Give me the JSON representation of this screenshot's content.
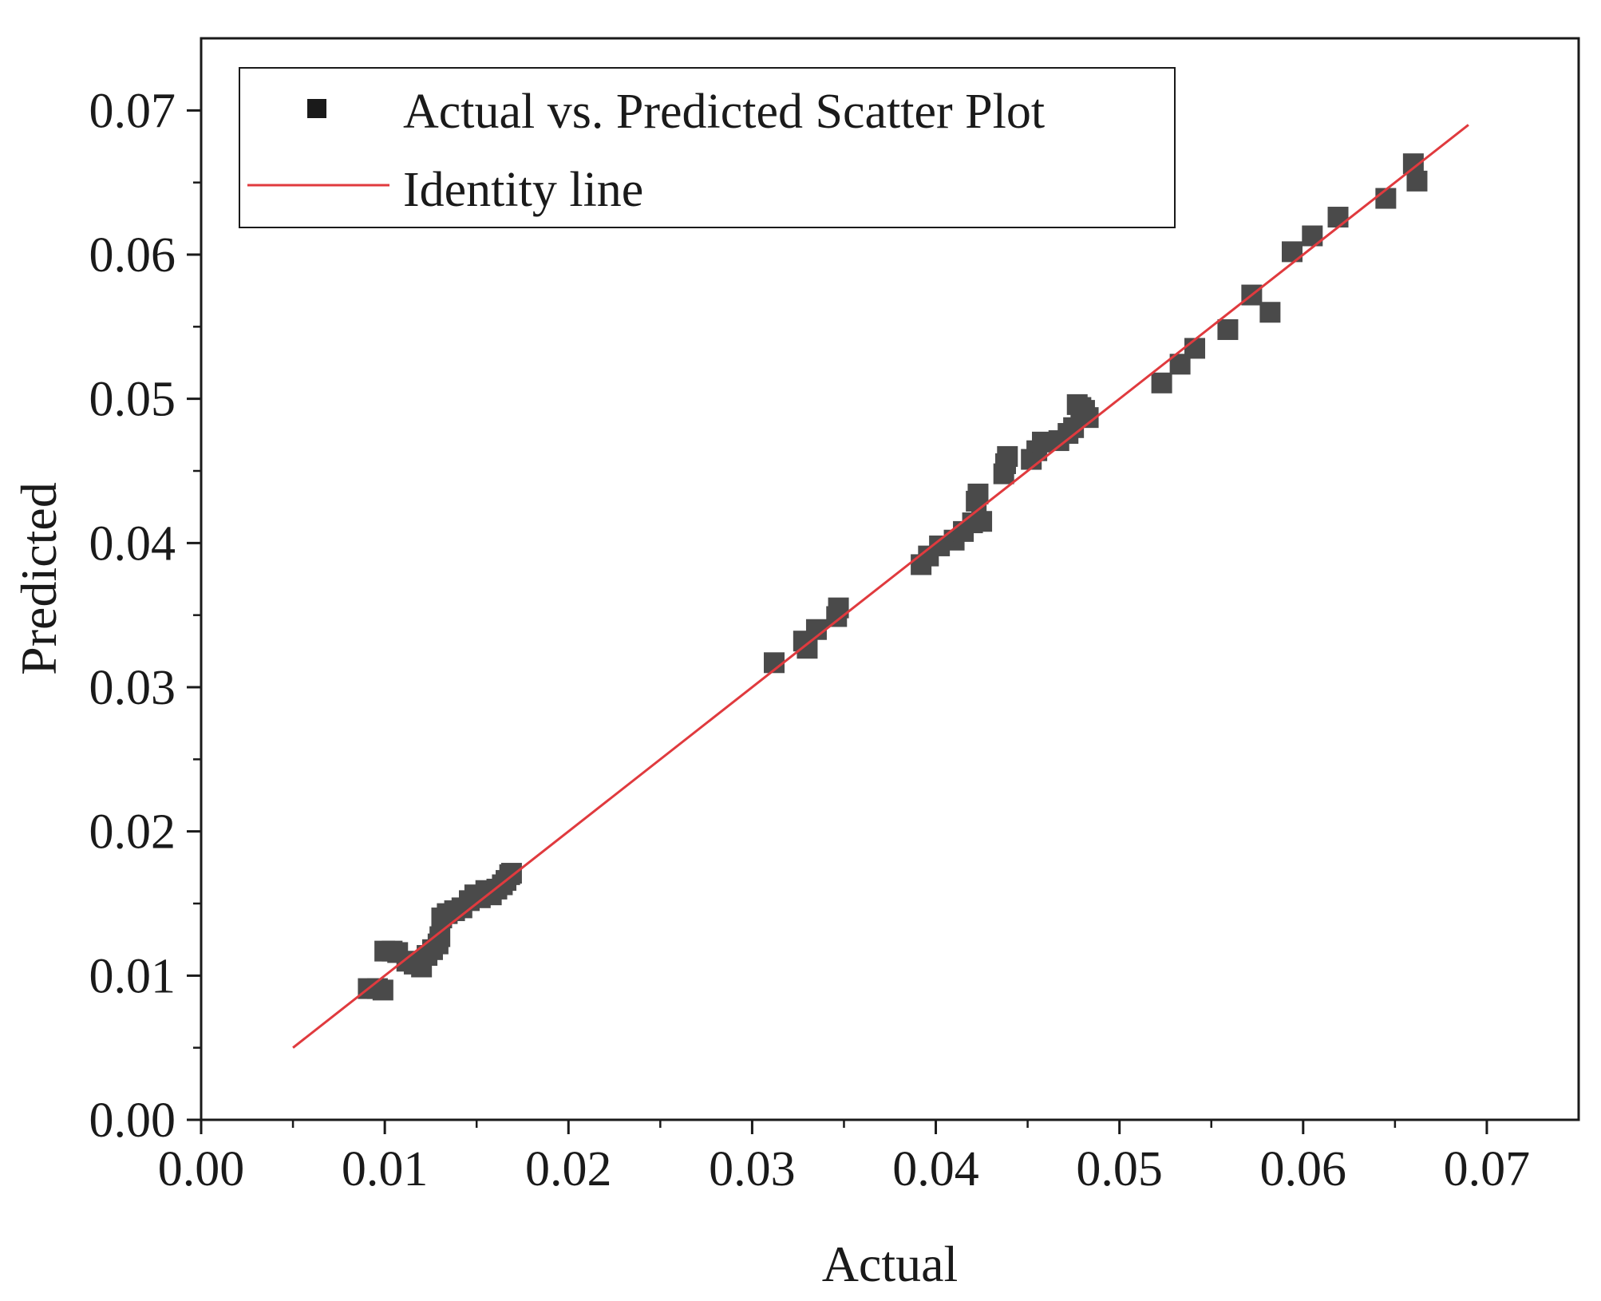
{
  "chart_data": {
    "type": "scatter",
    "title": "",
    "xlabel": "Actual",
    "ylabel": "Predicted",
    "xlim": [
      0.0,
      0.075
    ],
    "ylim": [
      0.0,
      0.075
    ],
    "xticks": [
      "0.00",
      "0.01",
      "0.02",
      "0.03",
      "0.04",
      "0.05",
      "0.06",
      "0.07"
    ],
    "yticks": [
      "0.00",
      "0.01",
      "0.02",
      "0.03",
      "0.04",
      "0.05",
      "0.06",
      "0.07"
    ],
    "grid": false,
    "legend_position": "top-left",
    "series": [
      {
        "name": "Actual vs. Predicted Scatter Plot",
        "kind": "scatter",
        "marker": "square",
        "color": "#4a4a4a",
        "points": [
          [
            0.0091,
            0.0091
          ],
          [
            0.0096,
            0.0091
          ],
          [
            0.0099,
            0.009
          ],
          [
            0.01,
            0.0117
          ],
          [
            0.0104,
            0.0117
          ],
          [
            0.0107,
            0.0116
          ],
          [
            0.0112,
            0.011
          ],
          [
            0.0116,
            0.0108
          ],
          [
            0.012,
            0.0106
          ],
          [
            0.0123,
            0.0114
          ],
          [
            0.0126,
            0.0118
          ],
          [
            0.0129,
            0.0122
          ],
          [
            0.013,
            0.0127
          ],
          [
            0.0131,
            0.014
          ],
          [
            0.0134,
            0.0143
          ],
          [
            0.0138,
            0.0145
          ],
          [
            0.0142,
            0.0147
          ],
          [
            0.0146,
            0.0152
          ],
          [
            0.0149,
            0.0156
          ],
          [
            0.0152,
            0.0154
          ],
          [
            0.0155,
            0.0159
          ],
          [
            0.0158,
            0.0156
          ],
          [
            0.0161,
            0.016
          ],
          [
            0.0164,
            0.0163
          ],
          [
            0.0166,
            0.0166
          ],
          [
            0.0168,
            0.017
          ],
          [
            0.0169,
            0.0171
          ],
          [
            0.0312,
            0.0317
          ],
          [
            0.0328,
            0.0332
          ],
          [
            0.033,
            0.0327
          ],
          [
            0.0335,
            0.034
          ],
          [
            0.0346,
            0.0349
          ],
          [
            0.0347,
            0.0355
          ],
          [
            0.0392,
            0.0385
          ],
          [
            0.0396,
            0.0391
          ],
          [
            0.0402,
            0.0398
          ],
          [
            0.041,
            0.0402
          ],
          [
            0.0415,
            0.0408
          ],
          [
            0.042,
            0.0414
          ],
          [
            0.0422,
            0.0429
          ],
          [
            0.0423,
            0.0434
          ],
          [
            0.0425,
            0.0415
          ],
          [
            0.0437,
            0.0448
          ],
          [
            0.0438,
            0.0455
          ],
          [
            0.0439,
            0.046
          ],
          [
            0.0452,
            0.0458
          ],
          [
            0.0455,
            0.0464
          ],
          [
            0.0458,
            0.047
          ],
          [
            0.0467,
            0.0471
          ],
          [
            0.0472,
            0.0476
          ],
          [
            0.0475,
            0.048
          ],
          [
            0.0477,
            0.0496
          ],
          [
            0.0479,
            0.0494
          ],
          [
            0.0481,
            0.0492
          ],
          [
            0.0483,
            0.0487
          ],
          [
            0.0523,
            0.0511
          ],
          [
            0.0533,
            0.0524
          ],
          [
            0.0541,
            0.0535
          ],
          [
            0.0559,
            0.0548
          ],
          [
            0.0572,
            0.0572
          ],
          [
            0.0582,
            0.056
          ],
          [
            0.0594,
            0.0602
          ],
          [
            0.0605,
            0.0613
          ],
          [
            0.0619,
            0.0626
          ],
          [
            0.0645,
            0.0639
          ],
          [
            0.066,
            0.0663
          ],
          [
            0.0662,
            0.0651
          ]
        ]
      },
      {
        "name": "Identity line",
        "kind": "line",
        "color": "#e03a3e",
        "points": [
          [
            0.005,
            0.005
          ],
          [
            0.069,
            0.069
          ]
        ]
      }
    ]
  }
}
